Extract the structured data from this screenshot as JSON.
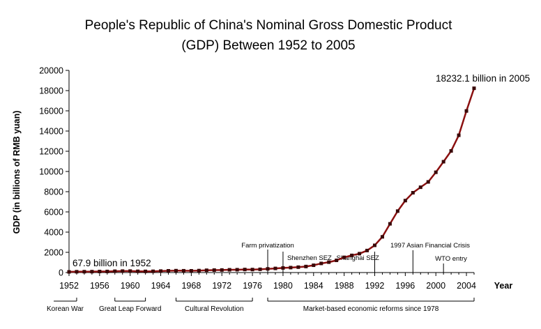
{
  "chart_data": {
    "type": "line",
    "title_lines": [
      "People's Republic of China's Nominal Gross Domestic Product",
      "(GDP) Between 1952 to 2005"
    ],
    "ylabel": "GDP (in billions of RMB yuan)",
    "xlabel": "Year",
    "ylim": [
      0,
      20000
    ],
    "xlim": [
      1952,
      2005
    ],
    "yticks": [
      0,
      2000,
      4000,
      6000,
      8000,
      10000,
      12000,
      14000,
      16000,
      18000,
      20000
    ],
    "xticks": [
      1952,
      1956,
      1960,
      1964,
      1968,
      1972,
      1976,
      1980,
      1984,
      1988,
      1992,
      1996,
      2000,
      2004
    ],
    "series": [
      {
        "name": "Nominal GDP",
        "color": "#8b1010",
        "marker_color": "#3a0808",
        "x": [
          1952,
          1953,
          1954,
          1955,
          1956,
          1957,
          1958,
          1959,
          1960,
          1961,
          1962,
          1963,
          1964,
          1965,
          1966,
          1967,
          1968,
          1969,
          1970,
          1971,
          1972,
          1973,
          1974,
          1975,
          1976,
          1977,
          1978,
          1979,
          1980,
          1981,
          1982,
          1983,
          1984,
          1985,
          1986,
          1987,
          1988,
          1989,
          1990,
          1991,
          1992,
          1993,
          1994,
          1995,
          1996,
          1997,
          1998,
          1999,
          2000,
          2001,
          2002,
          2003,
          2004,
          2005
        ],
        "values": [
          67.9,
          82.4,
          85.9,
          91,
          102.8,
          106.8,
          130.7,
          143.9,
          145.7,
          122,
          114.9,
          123.3,
          145.4,
          171.6,
          186.8,
          177.4,
          172.3,
          193.8,
          225.3,
          242.6,
          251.8,
          272.1,
          279,
          299.7,
          294.4,
          320.2,
          364.5,
          406.3,
          454.6,
          489.2,
          532.3,
          596.3,
          720.8,
          901.6,
          1027.5,
          1205.9,
          1504.3,
          1697.5,
          1866.8,
          2178.1,
          2692.3,
          3533.4,
          4819.8,
          6079.4,
          7117.7,
          7897.3,
          8440.2,
          8967.7,
          9921.5,
          10965.5,
          12033.3,
          13582.3,
          15987.8,
          18232.1
        ]
      }
    ],
    "annotations": {
      "first_point": "67.9 billion in 1952",
      "last_point": "18232.1 billion in 2005",
      "events": [
        {
          "year": 1978,
          "label": "Farm privatization"
        },
        {
          "year": 1980,
          "label": "Shenzhen SEZ"
        },
        {
          "year": 1992,
          "label": "Shanghai SEZ"
        },
        {
          "year": 1997,
          "label": "1997 Asian Financial Crisis"
        },
        {
          "year": 2001,
          "label": "WTO entry"
        }
      ],
      "periods": [
        {
          "start": 1950,
          "end": 1953,
          "label": "Korean War"
        },
        {
          "start": 1958,
          "end": 1962,
          "label": "Great Leap Forward"
        },
        {
          "start": 1966,
          "end": 1976,
          "label": "Cultural Revolution"
        },
        {
          "start": 1978,
          "end": 2005,
          "label": "Market-based economic reforms since 1978"
        }
      ]
    }
  }
}
